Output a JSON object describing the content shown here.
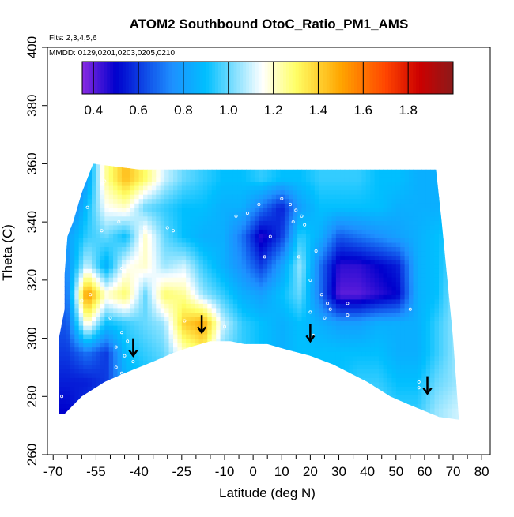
{
  "chart_data": {
    "type": "heatmap",
    "title": "ATOM2 Southbound OtoC_Ratio_PM1_AMS",
    "subtitle_lines": [
      "Flts: 2,3,4,5,6",
      "MMDD: 0129,0201,0203,0205,0210"
    ],
    "xlabel": "Latitude (deg N)",
    "ylabel": "Theta (C)",
    "xlim": [
      -70,
      85
    ],
    "ylim": [
      260,
      400
    ],
    "x_ticks": [
      -70,
      -55,
      -40,
      -25,
      -10,
      0,
      10,
      20,
      30,
      40,
      50,
      60,
      70,
      80
    ],
    "x_minor_ticks": [
      -65,
      -60,
      -50,
      -45,
      -35,
      -30,
      -20,
      -15,
      -5,
      5,
      15,
      25,
      35,
      45,
      55,
      65,
      75,
      85
    ],
    "y_ticks": [
      260,
      280,
      300,
      320,
      340,
      360,
      380,
      400
    ],
    "colorbar": {
      "min": 0.35,
      "max": 2.0,
      "tick_values": [
        0.4,
        0.6,
        0.8,
        1.0,
        1.2,
        1.4,
        1.6,
        1.8
      ],
      "tick_labels": [
        "0.4",
        "0.6",
        "0.8",
        "1.0",
        "1.2",
        "1.4",
        "1.6",
        "1.8"
      ],
      "colors": [
        "#8a2be2",
        "#0000cd",
        "#1e90ff",
        "#00bfff",
        "#ffffff",
        "#ffff66",
        "#ffa500",
        "#ff4500",
        "#cc0000",
        "#8b1a1a"
      ],
      "color_stops": [
        0.35,
        0.5,
        0.75,
        0.9,
        1.15,
        1.3,
        1.5,
        1.7,
        1.85,
        2.0
      ]
    },
    "colormap_values": [
      [
        0.6,
        0.8,
        1.25,
        1.45,
        1.3,
        1.1,
        1.0,
        0.95,
        0.9,
        0.9,
        0.95,
        0.9,
        0.9,
        0.95,
        0.95,
        0.95,
        0.9,
        0.9,
        0.85,
        0.85,
        0.9
      ],
      [
        0.65,
        0.9,
        1.15,
        1.2,
        1.0,
        0.95,
        0.9,
        0.9,
        0.85,
        0.85,
        0.7,
        0.55,
        0.8,
        0.9,
        0.9,
        0.9,
        0.9,
        0.85,
        0.85,
        0.85,
        0.9
      ],
      [
        0.8,
        0.95,
        1.0,
        0.9,
        1.2,
        1.0,
        0.9,
        0.85,
        0.85,
        0.7,
        0.45,
        0.6,
        0.95,
        0.85,
        0.65,
        0.7,
        0.75,
        0.8,
        0.85,
        0.9,
        0.95
      ],
      [
        0.75,
        1.1,
        0.85,
        1.15,
        1.2,
        1.05,
        1.1,
        0.95,
        0.85,
        0.75,
        0.6,
        0.8,
        1.05,
        0.7,
        0.45,
        0.45,
        0.5,
        0.55,
        0.85,
        0.9,
        1.0
      ],
      [
        0.7,
        1.55,
        1.2,
        1.3,
        1.0,
        1.3,
        1.25,
        1.05,
        0.95,
        0.85,
        0.8,
        0.9,
        1.0,
        0.7,
        0.4,
        0.4,
        0.45,
        0.5,
        0.85,
        0.9,
        1.05
      ],
      [
        0.65,
        1.2,
        0.9,
        0.95,
        1.0,
        1.05,
        1.4,
        1.5,
        1.1,
        0.95,
        0.9,
        0.85,
        0.9,
        0.85,
        0.8,
        0.8,
        0.85,
        0.85,
        0.85,
        0.95,
        1.05
      ],
      [
        0.6,
        0.7,
        0.6,
        0.9,
        0.95,
        1.0,
        1.2,
        1.3,
        1.0,
        0.95,
        0.9,
        0.85,
        0.9,
        0.9,
        0.9,
        0.9,
        0.9,
        0.85,
        0.85,
        0.95,
        1.05
      ],
      [
        0.55,
        0.55,
        0.6,
        0.85,
        0.9,
        0.95,
        0.95,
        0.95,
        0.9,
        0.9,
        0.85,
        0.85,
        0.85,
        0.9,
        0.9,
        0.95,
        0.95,
        0.9,
        0.9,
        1.0,
        1.05
      ],
      [
        0.5,
        0.6,
        0.7,
        0.8,
        0.85,
        0.9,
        0.9,
        0.9,
        0.9,
        0.9,
        0.9,
        0.9,
        0.95,
        0.95,
        1.0,
        1.0,
        1.0,
        0.95,
        0.95,
        1.05,
        1.1
      ]
    ],
    "colormap_theta_levels": [
      355,
      345,
      335,
      325,
      315,
      305,
      295,
      285,
      275
    ],
    "colormap_lat_start": -65,
    "colormap_lat_step": 6.8,
    "data_envelope": [
      [
        -68,
        274
      ],
      [
        -68,
        300
      ],
      [
        -66,
        310
      ],
      [
        -66,
        322
      ],
      [
        -65,
        335
      ],
      [
        -63,
        340
      ],
      [
        -60,
        350
      ],
      [
        -58,
        355
      ],
      [
        -56,
        360
      ],
      [
        -40,
        358
      ],
      [
        -20,
        358
      ],
      [
        0,
        358
      ],
      [
        20,
        358
      ],
      [
        40,
        358
      ],
      [
        64,
        358
      ],
      [
        66,
        340
      ],
      [
        68,
        320
      ],
      [
        70,
        300
      ],
      [
        72,
        272
      ],
      [
        65,
        273
      ],
      [
        55,
        277
      ],
      [
        48,
        280
      ],
      [
        40,
        285
      ],
      [
        28,
        291
      ],
      [
        20,
        294
      ],
      [
        12,
        296
      ],
      [
        5,
        298
      ],
      [
        -3,
        298
      ],
      [
        -8,
        299
      ],
      [
        -15,
        299
      ],
      [
        -22,
        297
      ],
      [
        -28,
        295
      ],
      [
        -35,
        292
      ],
      [
        -45,
        288
      ],
      [
        -52,
        285
      ],
      [
        -60,
        280
      ],
      [
        -66,
        274
      ]
    ],
    "sample_points": [
      [
        -52,
        354
      ],
      [
        -58,
        345
      ],
      [
        -47,
        340
      ],
      [
        -53,
        337
      ],
      [
        -38,
        338
      ],
      [
        -28,
        337
      ],
      [
        -46,
        324
      ],
      [
        -57,
        315
      ],
      [
        -50,
        307
      ],
      [
        -46,
        302
      ],
      [
        -44,
        299
      ],
      [
        -48,
        297
      ],
      [
        -45,
        294
      ],
      [
        -42,
        292
      ],
      [
        -48,
        290
      ],
      [
        -46,
        288
      ],
      [
        -60,
        313
      ],
      [
        -67,
        280
      ],
      [
        -24,
        306
      ],
      [
        -10,
        304
      ],
      [
        -2,
        343
      ],
      [
        -6,
        342
      ],
      [
        2,
        346
      ],
      [
        6,
        335
      ],
      [
        4,
        328
      ],
      [
        10,
        348
      ],
      [
        13,
        346
      ],
      [
        15,
        344
      ],
      [
        17,
        342
      ],
      [
        14,
        340
      ],
      [
        18,
        339
      ],
      [
        22,
        330
      ],
      [
        16,
        328
      ],
      [
        20,
        320
      ],
      [
        24,
        315
      ],
      [
        26,
        312
      ],
      [
        27,
        310
      ],
      [
        25,
        307
      ],
      [
        20,
        309
      ],
      [
        33,
        312
      ],
      [
        33,
        308
      ],
      [
        21,
        301
      ],
      [
        55,
        310
      ],
      [
        58,
        285
      ],
      [
        58,
        283
      ],
      [
        65,
        356
      ],
      [
        -30,
        338
      ]
    ],
    "flight_arrows": [
      {
        "lat": -42,
        "theta": 294
      },
      {
        "lat": -18,
        "theta": 302
      },
      {
        "lat": 20,
        "theta": 299
      },
      {
        "lat": 61,
        "theta": 281
      }
    ],
    "grid": false,
    "legend": "top"
  }
}
